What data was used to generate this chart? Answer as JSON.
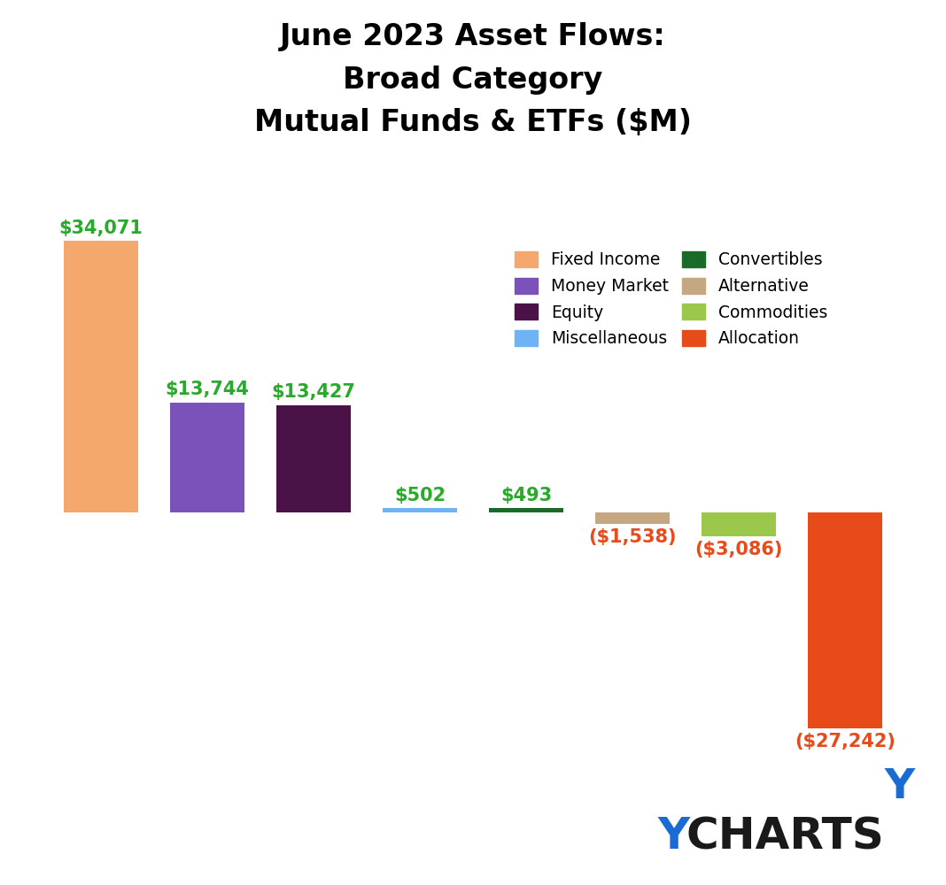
{
  "title": "June 2023 Asset Flows:\nBroad Category\nMutual Funds & ETFs ($M)",
  "categories": [
    "Fixed Income",
    "Money Market",
    "Equity",
    "Miscellaneous",
    "Convertibles",
    "Alternative",
    "Commodities",
    "Allocation"
  ],
  "values": [
    34071,
    13744,
    13427,
    502,
    493,
    -1538,
    -3086,
    -27242
  ],
  "colors": [
    "#F5A86E",
    "#7B52B9",
    "#4B1248",
    "#6EB4F5",
    "#1A6B2A",
    "#C4A882",
    "#9BC84A",
    "#E84B1A"
  ],
  "label_colors": [
    "#2AAA2A",
    "#2AAA2A",
    "#2AAA2A",
    "#2AAA2A",
    "#2AAA2A",
    "#E84B1A",
    "#E84B1A",
    "#E84B1A"
  ],
  "legend_items_col1": [
    {
      "label": "Fixed Income",
      "color": "#F5A86E"
    },
    {
      "label": "Equity",
      "color": "#4B1248"
    },
    {
      "label": "Convertibles",
      "color": "#1A6B2A"
    },
    {
      "label": "Commodities",
      "color": "#9BC84A"
    }
  ],
  "legend_items_col2": [
    {
      "label": "Money Market",
      "color": "#7B52B9"
    },
    {
      "label": "Miscellaneous",
      "color": "#6EB4F5"
    },
    {
      "label": "Alternative",
      "color": "#C4A882"
    },
    {
      "label": "Allocation",
      "color": "#E84B1A"
    }
  ],
  "value_labels": [
    "$34,071",
    "$13,744",
    "$13,427",
    "$502",
    "$493",
    "($1,538)",
    "($3,086)",
    "($27,242)"
  ],
  "background_color": "#FFFFFF",
  "title_fontsize": 24,
  "label_fontsize": 15,
  "ylim_min": -34000,
  "ylim_max": 44000,
  "ychart_y_color": "#1A6BD4",
  "ychart_charts_color": "#1A1A1A"
}
